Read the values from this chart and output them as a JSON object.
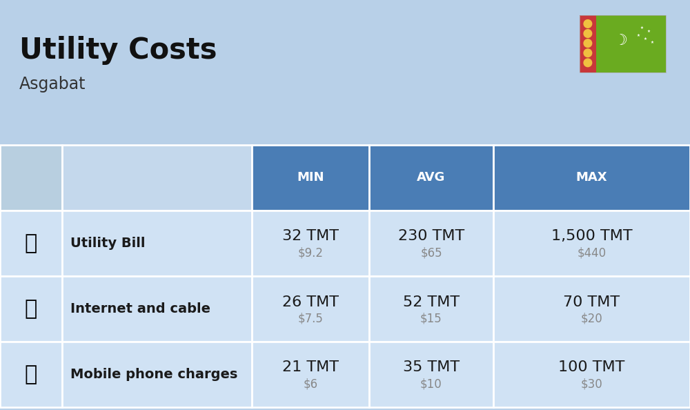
{
  "title": "Utility Costs",
  "subtitle": "Asgabat",
  "background_color": "#b8d0e8",
  "header_color": "#4a7db5",
  "header_text_color": "#ffffff",
  "row_color": "#ccddf0",
  "icon_col_color": "#b8cfe0",
  "label_col_color": "#c4d8ec",
  "cell_color": "#d0e2f4",
  "separator_color": "#ffffff",
  "columns": [
    "",
    "",
    "MIN",
    "AVG",
    "MAX"
  ],
  "rows": [
    {
      "label": "Utility Bill",
      "min_tmt": "32 TMT",
      "min_usd": "$9.2",
      "avg_tmt": "230 TMT",
      "avg_usd": "$65",
      "max_tmt": "1,500 TMT",
      "max_usd": "$440"
    },
    {
      "label": "Internet and cable",
      "min_tmt": "26 TMT",
      "min_usd": "$7.5",
      "avg_tmt": "52 TMT",
      "avg_usd": "$15",
      "max_tmt": "70 TMT",
      "max_usd": "$20"
    },
    {
      "label": "Mobile phone charges",
      "min_tmt": "21 TMT",
      "min_usd": "$6",
      "avg_tmt": "35 TMT",
      "avg_usd": "$10",
      "max_tmt": "100 TMT",
      "max_usd": "$30"
    }
  ],
  "title_fontsize": 30,
  "subtitle_fontsize": 17,
  "header_fontsize": 13,
  "cell_tmt_fontsize": 16,
  "cell_usd_fontsize": 12,
  "label_fontsize": 14,
  "flag_green": "#6aab20",
  "flag_red_stripe": "#c8373a",
  "fig_width": 10.0,
  "fig_height": 5.94
}
